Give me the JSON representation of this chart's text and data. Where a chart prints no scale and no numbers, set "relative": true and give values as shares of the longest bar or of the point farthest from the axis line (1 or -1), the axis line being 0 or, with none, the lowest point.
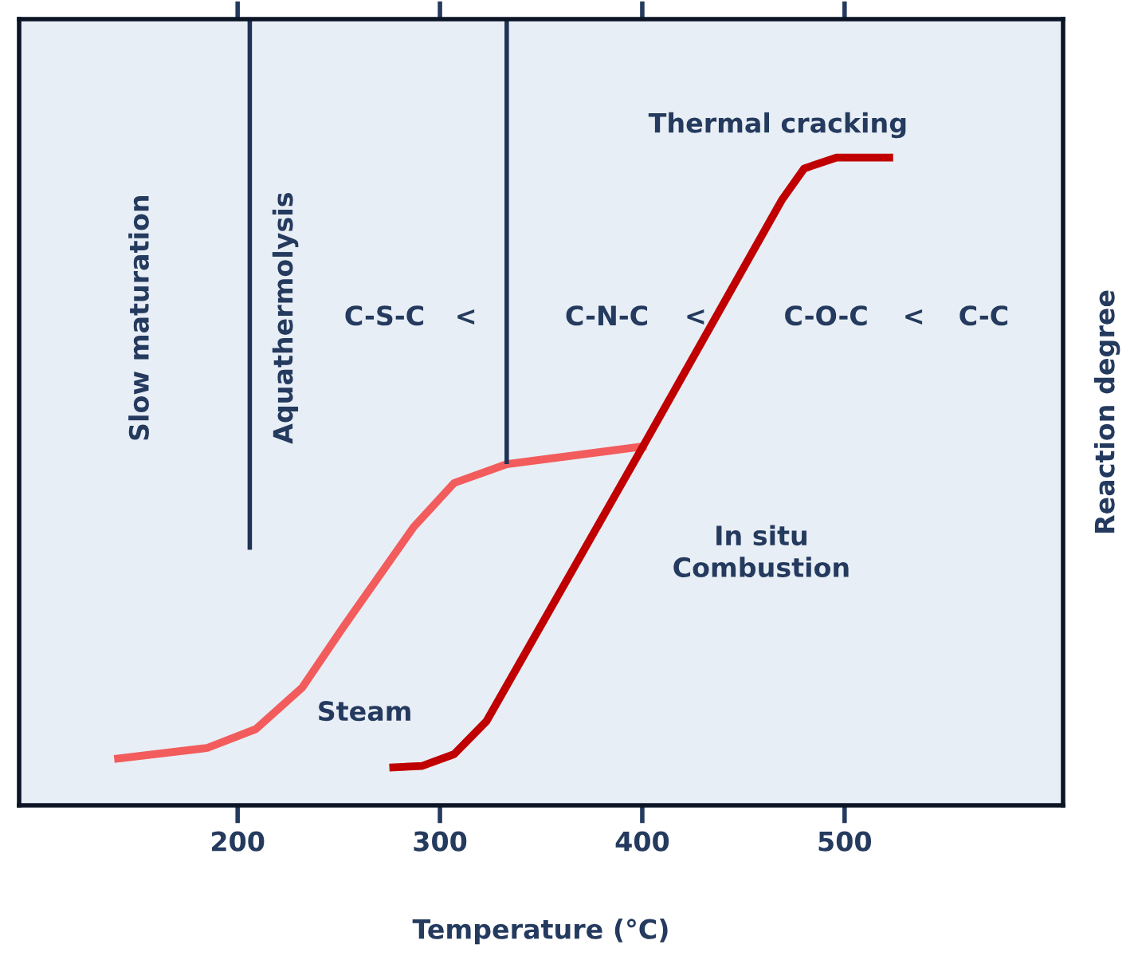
{
  "chart_data": {
    "type": "line",
    "relative": true,
    "xlabel": "Temperature (°C)",
    "ylabel": "Reaction degree",
    "xlim": [
      92,
      608
    ],
    "xticks": [
      200,
      300,
      400,
      500
    ],
    "tick_labels": "x",
    "grid": false,
    "legend": false,
    "marker": "none",
    "line_style": "solid",
    "series": [
      {
        "color": "#f25c5c",
        "x": [
          139,
          185,
          209,
          232,
          252,
          287,
          307,
          333,
          402
        ],
        "values": [
          0.059,
          0.073,
          0.097,
          0.15,
          0.226,
          0.354,
          0.41,
          0.434,
          0.457
        ]
      },
      {
        "color": "#c00000",
        "x": [
          275,
          291,
          307,
          323,
          400,
          469,
          480,
          496,
          524
        ],
        "values": [
          0.048,
          0.05,
          0.065,
          0.107,
          0.455,
          0.77,
          0.81,
          0.824,
          0.824
        ]
      },
      {
        "color": "#1f3354",
        "x": [
          206,
          206
        ],
        "values": [
          0.325,
          1.0
        ]
      },
      {
        "color": "#1f3354",
        "x": [
          333,
          333
        ],
        "values": [
          0.434,
          1.0
        ]
      }
    ],
    "annotations": [
      "Slow maturation",
      "Aquathermolysis",
      "C-S-C",
      "<",
      "C-N-C",
      "<",
      "C-O-C",
      "<",
      "C-C",
      "Thermal cracking",
      "In situ\nCombustion",
      "Steam"
    ]
  }
}
